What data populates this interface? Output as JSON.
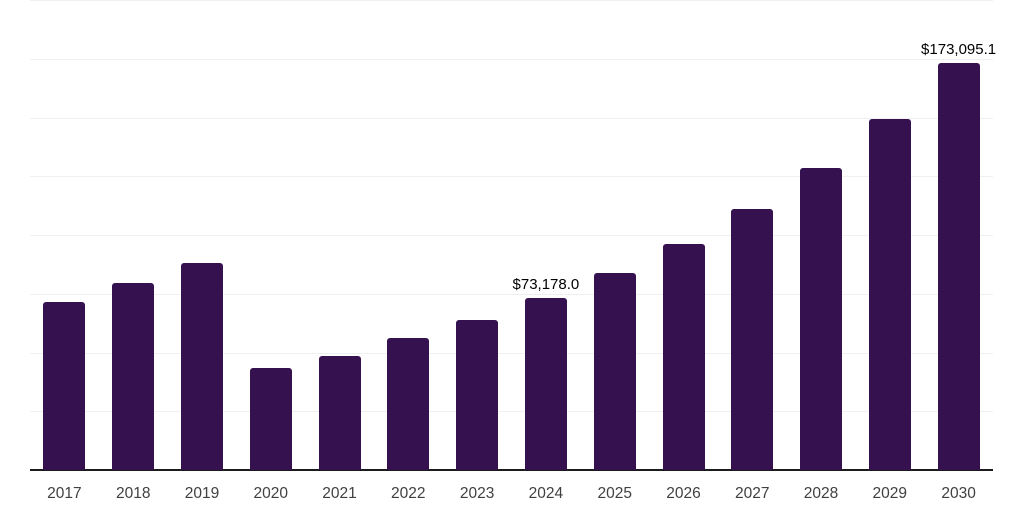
{
  "chart": {
    "background_color": "#ffffff",
    "bar_color": "#36114f",
    "gridline_color": "#f0f0f0",
    "axis_line_color": "#1c1c1c",
    "tick_label_color": "#404040",
    "data_label_color": "#000000"
  },
  "chart_data": {
    "type": "bar",
    "title": "",
    "xlabel": "",
    "ylabel": "",
    "categories": [
      "2017",
      "2018",
      "2019",
      "2020",
      "2021",
      "2022",
      "2023",
      "2024",
      "2025",
      "2026",
      "2027",
      "2028",
      "2029",
      "2030"
    ],
    "values": [
      71500,
      79400,
      88200,
      43300,
      48500,
      56000,
      63800,
      73178.0,
      84000,
      96000,
      110900,
      128600,
      149200,
      173095.1
    ],
    "value_prefix": "$",
    "data_labels": [
      {
        "category": "2024",
        "index": 7,
        "text": "$73,178.0"
      },
      {
        "category": "2030",
        "index": 13,
        "text": "$173,095.1"
      }
    ],
    "ylim": [
      0,
      200000
    ],
    "gridline_step": 25000,
    "grid": "horizontal gridlines only, no y-axis tick labels",
    "legend_position": "none"
  }
}
